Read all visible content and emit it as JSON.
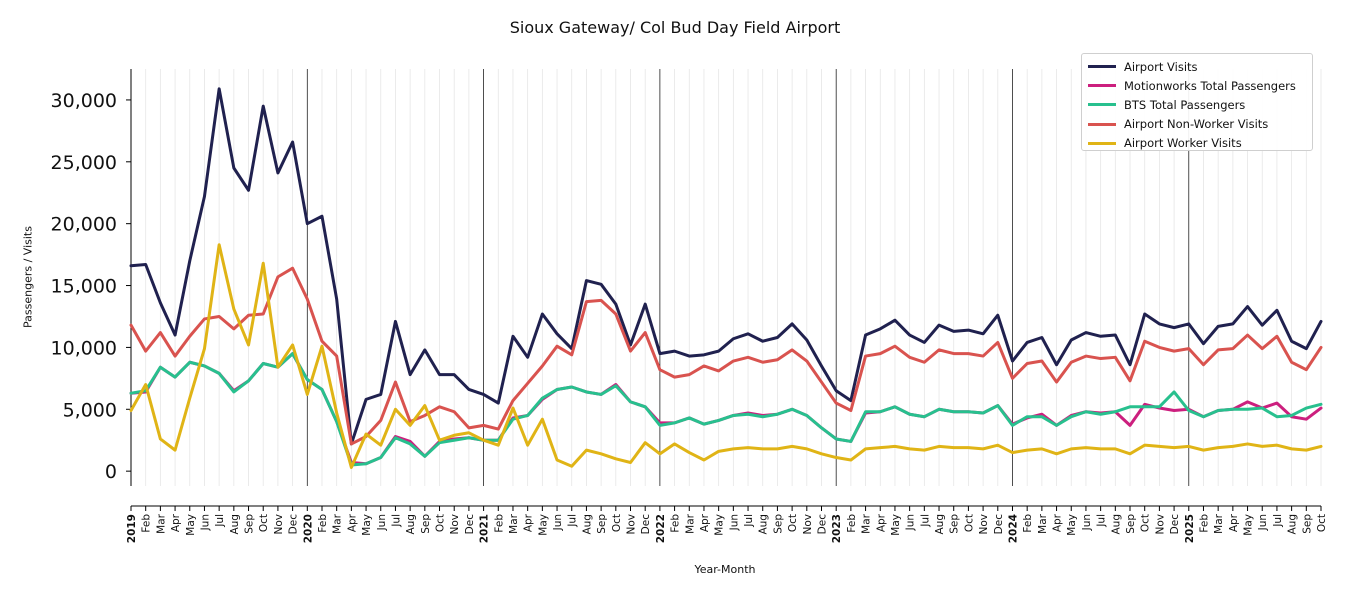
{
  "chart_data": {
    "type": "line",
    "title": "Sioux Gateway/ Col Bud Day Field Airport",
    "xlabel": "Year-Month",
    "ylabel": "Passengers / Visits",
    "ylim": [
      -1200,
      32500
    ],
    "yticks": [
      0,
      5000,
      10000,
      15000,
      20000,
      25000,
      30000
    ],
    "ytick_labels": [
      "0",
      "5,000",
      "10,000",
      "15,000",
      "20,000",
      "25,000",
      "30,000"
    ],
    "legend_position": "top-right",
    "grid": "vertical minor month lines, year separator lines",
    "x": [
      "2019-01",
      "2019-02",
      "2019-03",
      "2019-04",
      "2019-05",
      "2019-06",
      "2019-07",
      "2019-08",
      "2019-09",
      "2019-10",
      "2019-11",
      "2019-12",
      "2020-01",
      "2020-02",
      "2020-03",
      "2020-04",
      "2020-05",
      "2020-06",
      "2020-07",
      "2020-08",
      "2020-09",
      "2020-10",
      "2020-11",
      "2020-12",
      "2021-01",
      "2021-02",
      "2021-03",
      "2021-04",
      "2021-05",
      "2021-06",
      "2021-07",
      "2021-08",
      "2021-09",
      "2021-10",
      "2021-11",
      "2021-12",
      "2022-01",
      "2022-02",
      "2022-03",
      "2022-04",
      "2022-05",
      "2022-06",
      "2022-07",
      "2022-08",
      "2022-09",
      "2022-10",
      "2022-11",
      "2022-12",
      "2023-01",
      "2023-02",
      "2023-03",
      "2023-04",
      "2023-05",
      "2023-06",
      "2023-07",
      "2023-08",
      "2023-09",
      "2023-10",
      "2023-11",
      "2023-12",
      "2024-01",
      "2024-02",
      "2024-03",
      "2024-04",
      "2024-05",
      "2024-06",
      "2024-07",
      "2024-08",
      "2024-09",
      "2024-10",
      "2024-11",
      "2024-12",
      "2025-01",
      "2025-02",
      "2025-03",
      "2025-04",
      "2025-05",
      "2025-06",
      "2025-07",
      "2025-08",
      "2025-09",
      "2025-10"
    ],
    "x_tick_labels": [
      "2019",
      "Feb",
      "Mar",
      "Apr",
      "May",
      "Jun",
      "Jul",
      "Aug",
      "Sep",
      "Oct",
      "Nov",
      "Dec",
      "2020",
      "Feb",
      "Mar",
      "Apr",
      "May",
      "Jun",
      "Jul",
      "Aug",
      "Sep",
      "Oct",
      "Nov",
      "Dec",
      "2021",
      "Feb",
      "Mar",
      "Apr",
      "May",
      "Jun",
      "Jul",
      "Aug",
      "Sep",
      "Oct",
      "Nov",
      "Dec",
      "2022",
      "Feb",
      "Mar",
      "Apr",
      "May",
      "Jun",
      "Jul",
      "Aug",
      "Sep",
      "Oct",
      "Nov",
      "Dec",
      "2023",
      "Feb",
      "Mar",
      "Apr",
      "May",
      "Jun",
      "Jul",
      "Aug",
      "Sep",
      "Oct",
      "Nov",
      "Dec",
      "2024",
      "Feb",
      "Mar",
      "Apr",
      "May",
      "Jun",
      "Jul",
      "Aug",
      "Sep",
      "Oct",
      "Nov",
      "Dec",
      "2025",
      "Feb",
      "Mar",
      "Apr",
      "May",
      "Jun",
      "Jul",
      "Aug",
      "Sep",
      "Oct"
    ],
    "series": [
      {
        "name": "Airport Visits",
        "color": "#20214f",
        "values": [
          16600,
          16700,
          13600,
          11000,
          17000,
          22200,
          30900,
          24500,
          22700,
          29500,
          24100,
          26600,
          20000,
          20600,
          13900,
          2200,
          5800,
          6200,
          12100,
          7800,
          9800,
          7800,
          7800,
          6600,
          6200,
          5500,
          10900,
          9200,
          12700,
          11100,
          9900,
          15400,
          15100,
          13500,
          10200,
          13500,
          9500,
          9700,
          9300,
          9400,
          9700,
          10700,
          11100,
          10500,
          10800,
          11900,
          10600,
          8500,
          6500,
          5700,
          11000,
          11500,
          12200,
          11000,
          10400,
          11800,
          11300,
          11400,
          11100,
          12600,
          8900,
          10400,
          10800,
          8600,
          10600,
          11200,
          10900,
          11000,
          8600,
          12700,
          11900,
          11600,
          11900,
          10300,
          11700,
          11900,
          13300,
          11800,
          13000,
          10500,
          9900,
          12100
        ]
      },
      {
        "name": "Motionworks Total Passengers",
        "color": "#cc1f7e",
        "values": [
          6300,
          6400,
          8400,
          7600,
          8800,
          8500,
          7900,
          6500,
          7300,
          8700,
          8400,
          9500,
          7400,
          6600,
          4000,
          700,
          600,
          1100,
          2800,
          2400,
          1200,
          2400,
          2600,
          2700,
          2500,
          2500,
          4300,
          4500,
          5800,
          6600,
          6800,
          6400,
          6200,
          7000,
          5600,
          5200,
          3900,
          3900,
          4300,
          3800,
          4100,
          4500,
          4700,
          4500,
          4600,
          5000,
          4500,
          3500,
          2600,
          2400,
          4700,
          4800,
          5200,
          4600,
          4400,
          5000,
          4800,
          4800,
          4700,
          5300,
          3800,
          4300,
          4600,
          3700,
          4500,
          4800,
          4700,
          4800,
          3700,
          5400,
          5100,
          4900,
          5000,
          4400,
          4900,
          5000,
          5600,
          5100,
          5500,
          4400,
          4200,
          5100
        ]
      },
      {
        "name": "BTS Total Passengers",
        "color": "#28c08e",
        "values": [
          6300,
          6500,
          8400,
          7600,
          8800,
          8500,
          7900,
          6400,
          7300,
          8700,
          8400,
          9500,
          7400,
          6600,
          4000,
          500,
          600,
          1100,
          2700,
          2200,
          1200,
          2300,
          2500,
          2700,
          2500,
          2500,
          4200,
          4500,
          5900,
          6600,
          6800,
          6400,
          6200,
          6900,
          5600,
          5200,
          3700,
          3900,
          4300,
          3800,
          4100,
          4500,
          4600,
          4400,
          4600,
          5000,
          4500,
          3500,
          2600,
          2400,
          4800,
          4800,
          5200,
          4600,
          4400,
          5000,
          4800,
          4800,
          4700,
          5300,
          3700,
          4400,
          4400,
          3700,
          4400,
          4800,
          4600,
          4800,
          5200,
          5200,
          5200,
          6400,
          4900,
          4400,
          4900,
          5000,
          5000,
          5100,
          4400,
          4500,
          5100,
          5400
        ]
      },
      {
        "name": "Airport Non-Worker Visits",
        "color": "#d9534f",
        "values": [
          11800,
          9700,
          11200,
          9300,
          10900,
          12300,
          12500,
          11500,
          12600,
          12700,
          15700,
          16400,
          13900,
          10500,
          9300,
          2200,
          2800,
          4100,
          7200,
          4000,
          4500,
          5200,
          4800,
          3500,
          3700,
          3400,
          5700,
          7100,
          8500,
          10100,
          9400,
          13700,
          13800,
          12700,
          9700,
          11200,
          8200,
          7600,
          7800,
          8500,
          8100,
          8900,
          9200,
          8800,
          9000,
          9800,
          8900,
          7200,
          5500,
          4900,
          9300,
          9500,
          10100,
          9200,
          8800,
          9800,
          9500,
          9500,
          9300,
          10400,
          7500,
          8700,
          8900,
          7200,
          8800,
          9300,
          9100,
          9200,
          7300,
          10500,
          10000,
          9700,
          9900,
          8600,
          9800,
          9900,
          11000,
          9900,
          10900,
          8800,
          8200,
          10000
        ]
      },
      {
        "name": "Airport Worker Visits",
        "color": "#e0b416",
        "values": [
          4900,
          7000,
          2600,
          1700,
          5900,
          9900,
          18300,
          13100,
          10200,
          16800,
          8400,
          10200,
          6200,
          10100,
          4700,
          300,
          3000,
          2100,
          5000,
          3700,
          5300,
          2500,
          2900,
          3100,
          2500,
          2100,
          5100,
          2100,
          4200,
          900,
          400,
          1700,
          1400,
          1000,
          700,
          2300,
          1400,
          2200,
          1500,
          900,
          1600,
          1800,
          1900,
          1800,
          1800,
          2000,
          1800,
          1400,
          1100,
          900,
          1800,
          1900,
          2000,
          1800,
          1700,
          2000,
          1900,
          1900,
          1800,
          2100,
          1500,
          1700,
          1800,
          1400,
          1800,
          1900,
          1800,
          1800,
          1400,
          2100,
          2000,
          1900,
          2000,
          1700,
          1900,
          2000,
          2200,
          2000,
          2100,
          1800,
          1700,
          2000
        ]
      }
    ]
  }
}
